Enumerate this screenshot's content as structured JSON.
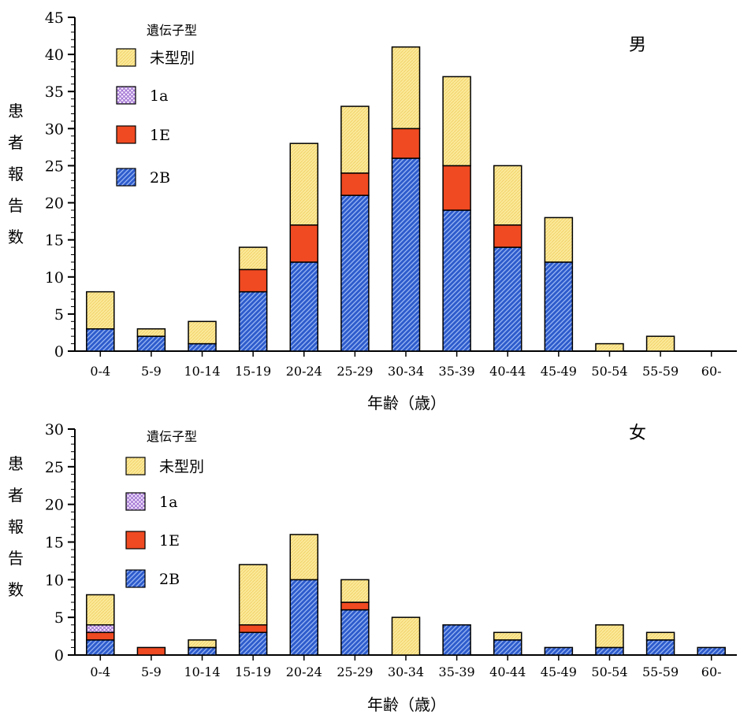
{
  "chart_data": [
    {
      "type": "bar",
      "stacked": true,
      "title": "男",
      "xlabel": "年齢（歳）",
      "ylabel": "患者報告数",
      "ylim": [
        0,
        45
      ],
      "yticks": [
        0,
        5,
        10,
        15,
        20,
        25,
        30,
        35,
        40,
        45
      ],
      "legend_title": "遺伝子型",
      "legend_position": "top-left",
      "categories": [
        "0-4",
        "5-9",
        "10-14",
        "15-19",
        "20-24",
        "25-29",
        "30-34",
        "35-39",
        "40-44",
        "45-49",
        "50-54",
        "55-59",
        "60-"
      ],
      "series": [
        {
          "name": "2B",
          "color": "#2e5ccc",
          "pattern": "diagonal-hatch",
          "values": [
            3,
            2,
            1,
            8,
            12,
            21,
            26,
            19,
            14,
            12,
            0,
            0,
            0
          ]
        },
        {
          "name": "1E",
          "color": "#f04a22",
          "pattern": "solid",
          "values": [
            0,
            0,
            0,
            3,
            5,
            3,
            4,
            6,
            3,
            0,
            0,
            0,
            0
          ]
        },
        {
          "name": "1a",
          "color": "#c9a6e6",
          "pattern": "crosshatch",
          "values": [
            0,
            0,
            0,
            0,
            0,
            0,
            0,
            0,
            0,
            0,
            0,
            0,
            0
          ]
        },
        {
          "name": "未型別",
          "color": "#fbe99a",
          "pattern": "fine-dots",
          "values": [
            5,
            1,
            3,
            3,
            11,
            9,
            11,
            12,
            8,
            6,
            1,
            2,
            0
          ]
        }
      ]
    },
    {
      "type": "bar",
      "stacked": true,
      "title": "女",
      "xlabel": "年齢（歳）",
      "ylabel": "患者報告数",
      "ylim": [
        0,
        30
      ],
      "yticks": [
        0,
        5,
        10,
        15,
        20,
        25,
        30
      ],
      "legend_title": "遺伝子型",
      "legend_position": "top-left",
      "categories": [
        "0-4",
        "5-9",
        "10-14",
        "15-19",
        "20-24",
        "25-29",
        "30-34",
        "35-39",
        "40-44",
        "45-49",
        "50-54",
        "55-59",
        "60-"
      ],
      "series": [
        {
          "name": "2B",
          "color": "#2e5ccc",
          "pattern": "diagonal-hatch",
          "values": [
            2,
            0,
            1,
            3,
            10,
            6,
            0,
            4,
            2,
            1,
            1,
            2,
            1
          ]
        },
        {
          "name": "1E",
          "color": "#f04a22",
          "pattern": "solid",
          "values": [
            1,
            1,
            0,
            1,
            0,
            1,
            0,
            0,
            0,
            0,
            0,
            0,
            0
          ]
        },
        {
          "name": "1a",
          "color": "#c9a6e6",
          "pattern": "crosshatch",
          "values": [
            1,
            0,
            0,
            0,
            0,
            0,
            0,
            0,
            0,
            0,
            0,
            0,
            0
          ]
        },
        {
          "name": "未型別",
          "color": "#fbe99a",
          "pattern": "fine-dots",
          "values": [
            4,
            0,
            1,
            8,
            6,
            3,
            5,
            0,
            1,
            0,
            3,
            1,
            0
          ]
        }
      ]
    }
  ]
}
